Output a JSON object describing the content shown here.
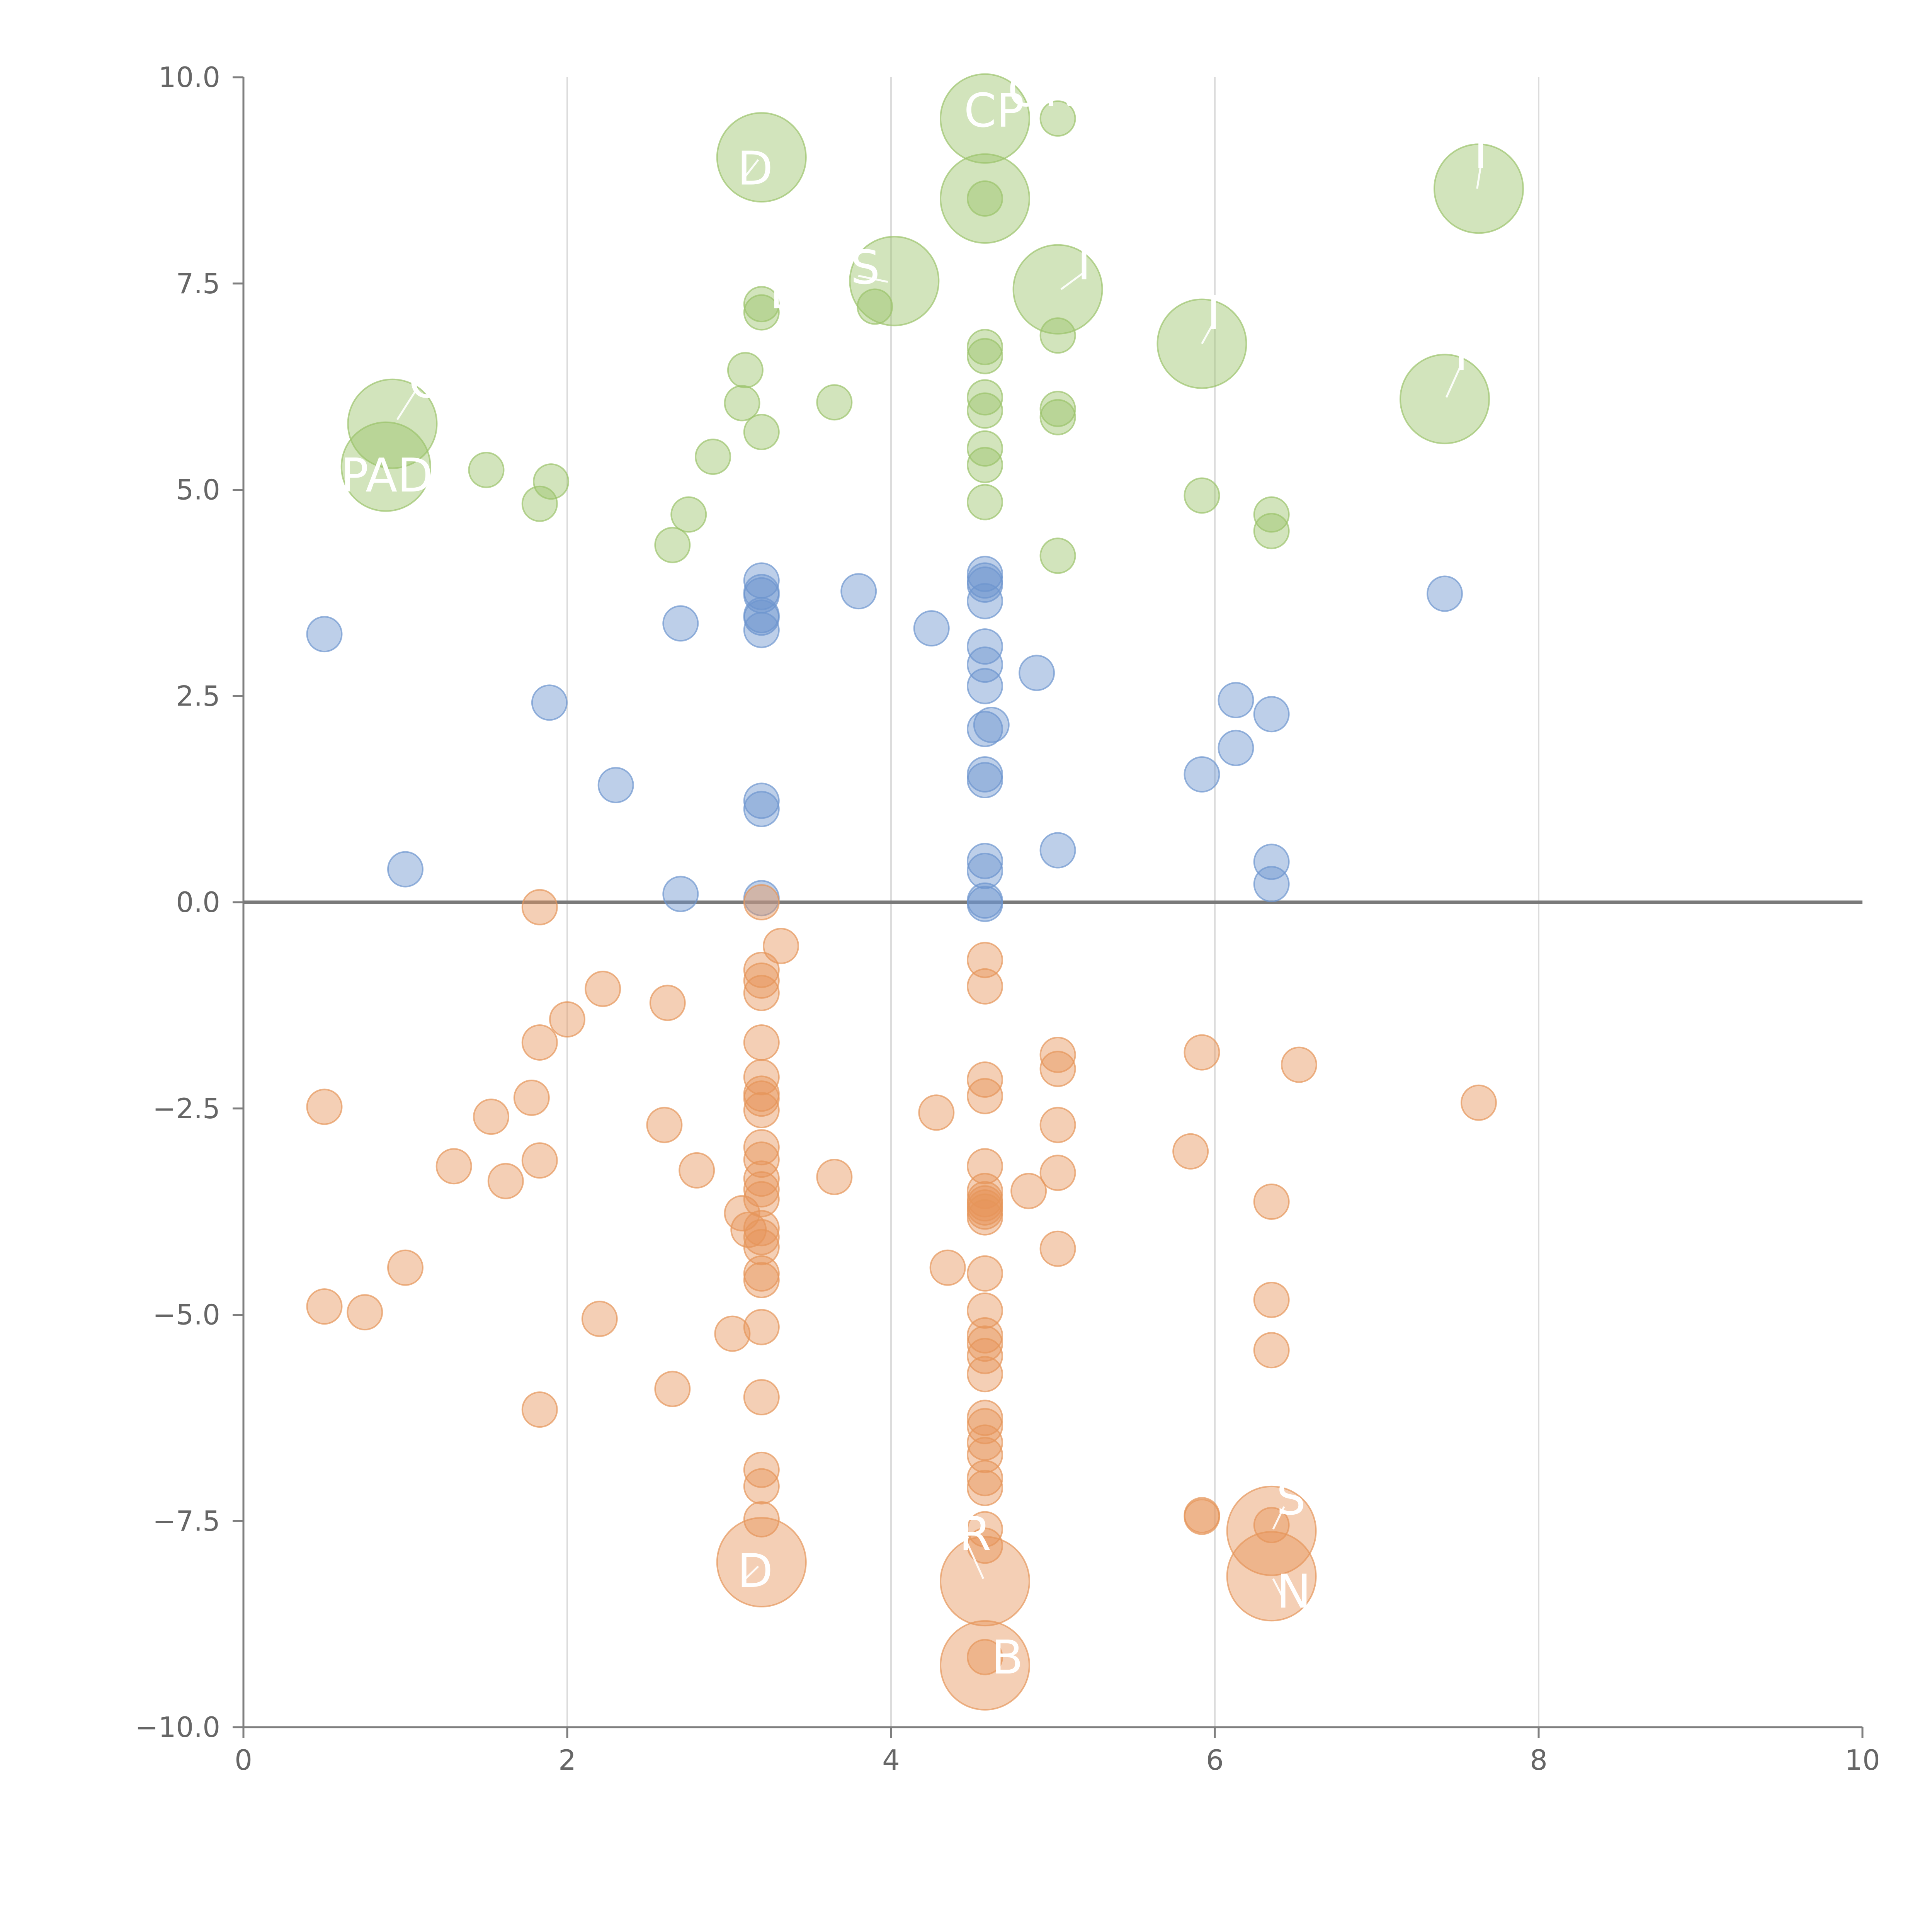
{
  "colors": {
    "green": "#9bc36b",
    "blue": "#6d95cf",
    "orange": "#e6955a",
    "axis": "#7f7f7f",
    "grid": "#dcdcdc",
    "tick_text": "#666666"
  },
  "chart_data": {
    "type": "scatter",
    "title": "",
    "xlabel": "",
    "ylabel": "",
    "xlim": [
      0,
      10
    ],
    "ylim": [
      -10,
      10
    ],
    "x_ticks": [
      0,
      2,
      4,
      6,
      8,
      10
    ],
    "x_tick_labels": [
      "0",
      "2",
      "4",
      "6",
      "8",
      "10"
    ],
    "y_ticks": [
      10,
      7.5,
      5,
      2.5,
      0,
      -2.5,
      -5,
      -7.5,
      -10
    ],
    "y_tick_labels": [
      "10.0",
      "7.5",
      "5.0",
      "2.5",
      "0.0",
      "−2.5",
      "−5.0",
      "−7.5",
      "−10.0"
    ],
    "grid": "vertical",
    "legend": "none",
    "reference_line_y": 0,
    "series": [
      {
        "color_key": "green",
        "points": [
          [
            0.88,
            5.28,
            3
          ],
          [
            0.92,
            5.8,
            3
          ],
          [
            1.5,
            5.24,
            1
          ],
          [
            1.83,
            4.83,
            1
          ],
          [
            1.9,
            5.1,
            1
          ],
          [
            2.65,
            4.33,
            1
          ],
          [
            2.75,
            4.7,
            1
          ],
          [
            2.9,
            5.4,
            1
          ],
          [
            3.08,
            6.05,
            1
          ],
          [
            3.1,
            6.45,
            1
          ],
          [
            3.2,
            5.7,
            1
          ],
          [
            3.2,
            7.15,
            1
          ],
          [
            3.2,
            7.25,
            1
          ],
          [
            3.2,
            9.03,
            3
          ],
          [
            3.65,
            6.06,
            1
          ],
          [
            3.9,
            7.22,
            1
          ],
          [
            4.02,
            7.53,
            3
          ],
          [
            4.58,
            9.5,
            3
          ],
          [
            4.58,
            8.53,
            3
          ],
          [
            4.58,
            8.53,
            1
          ],
          [
            4.58,
            6.73,
            1
          ],
          [
            4.58,
            6.62,
            1
          ],
          [
            4.58,
            6.12,
            1
          ],
          [
            4.58,
            5.96,
            1
          ],
          [
            4.58,
            5.5,
            1
          ],
          [
            4.58,
            5.3,
            1
          ],
          [
            4.58,
            4.85,
            1
          ],
          [
            5.03,
            9.5,
            1
          ],
          [
            5.03,
            7.43,
            3
          ],
          [
            5.03,
            6.87,
            1
          ],
          [
            5.03,
            5.98,
            1
          ],
          [
            5.03,
            5.88,
            1
          ],
          [
            5.03,
            4.2,
            1
          ],
          [
            5.92,
            6.77,
            3
          ],
          [
            5.92,
            4.93,
            1
          ],
          [
            6.35,
            4.7,
            1
          ],
          [
            6.35,
            4.5,
            1
          ],
          [
            7.42,
            6.1,
            3
          ],
          [
            7.63,
            8.65,
            3
          ]
        ]
      },
      {
        "color_key": "blue",
        "points": [
          [
            0.5,
            3.25,
            1
          ],
          [
            1.0,
            0.4,
            1
          ],
          [
            1.89,
            2.42,
            1
          ],
          [
            2.3,
            1.42,
            1
          ],
          [
            2.7,
            0.1,
            1
          ],
          [
            2.7,
            3.38,
            1
          ],
          [
            3.2,
            3.9,
            1
          ],
          [
            3.2,
            3.76,
            1
          ],
          [
            3.2,
            3.72,
            1
          ],
          [
            3.2,
            3.48,
            1
          ],
          [
            3.2,
            3.45,
            1
          ],
          [
            3.2,
            3.3,
            1
          ],
          [
            3.2,
            1.23,
            1
          ],
          [
            3.2,
            1.13,
            1
          ],
          [
            3.2,
            0.05,
            1
          ],
          [
            3.8,
            3.77,
            1
          ],
          [
            4.25,
            3.32,
            1
          ],
          [
            4.58,
            3.98,
            1
          ],
          [
            4.58,
            3.9,
            1
          ],
          [
            4.58,
            3.85,
            1
          ],
          [
            4.58,
            3.65,
            1
          ],
          [
            4.58,
            3.1,
            1
          ],
          [
            4.58,
            2.88,
            1
          ],
          [
            4.58,
            2.62,
            1
          ],
          [
            4.58,
            2.1,
            1
          ],
          [
            4.62,
            2.15,
            1
          ],
          [
            4.58,
            1.55,
            1
          ],
          [
            4.58,
            1.48,
            1
          ],
          [
            4.58,
            0.5,
            1
          ],
          [
            4.58,
            0.38,
            1
          ],
          [
            4.58,
            0.02,
            1
          ],
          [
            4.58,
            -0.02,
            1
          ],
          [
            4.9,
            2.78,
            1
          ],
          [
            5.03,
            0.63,
            1
          ],
          [
            5.92,
            1.55,
            1
          ],
          [
            6.13,
            2.45,
            1
          ],
          [
            6.13,
            1.87,
            1
          ],
          [
            6.35,
            2.28,
            1
          ],
          [
            6.35,
            0.49,
            1
          ],
          [
            6.35,
            0.22,
            1
          ],
          [
            7.42,
            3.74,
            1
          ]
        ]
      },
      {
        "color_key": "orange",
        "points": [
          [
            0.5,
            -2.48,
            1
          ],
          [
            0.5,
            -4.9,
            1
          ],
          [
            0.75,
            -4.97,
            1
          ],
          [
            1.0,
            -4.43,
            1
          ],
          [
            1.3,
            -3.2,
            1
          ],
          [
            1.53,
            -2.6,
            1
          ],
          [
            1.62,
            -3.38,
            1
          ],
          [
            1.78,
            -2.37,
            1
          ],
          [
            1.83,
            -0.06,
            1
          ],
          [
            1.83,
            -1.7,
            1
          ],
          [
            1.83,
            -3.13,
            1
          ],
          [
            1.83,
            -6.15,
            1
          ],
          [
            2.0,
            -1.42,
            1
          ],
          [
            2.22,
            -1.05,
            1
          ],
          [
            2.2,
            -5.05,
            1
          ],
          [
            2.62,
            -1.22,
            1
          ],
          [
            2.6,
            -2.7,
            1
          ],
          [
            2.65,
            -5.9,
            1
          ],
          [
            2.8,
            -3.25,
            1
          ],
          [
            3.02,
            -5.23,
            1
          ],
          [
            3.08,
            -3.77,
            1
          ],
          [
            3.12,
            -3.97,
            1
          ],
          [
            3.32,
            -0.53,
            1
          ],
          [
            3.2,
            0.0,
            1
          ],
          [
            3.2,
            -0.82,
            1
          ],
          [
            3.2,
            -0.95,
            1
          ],
          [
            3.2,
            -1.1,
            1
          ],
          [
            3.2,
            -1.7,
            1
          ],
          [
            3.2,
            -2.12,
            1
          ],
          [
            3.2,
            -2.32,
            1
          ],
          [
            3.2,
            -2.38,
            1
          ],
          [
            3.2,
            -2.52,
            1
          ],
          [
            3.2,
            -2.97,
            1
          ],
          [
            3.2,
            -3.12,
            1
          ],
          [
            3.2,
            -3.35,
            1
          ],
          [
            3.2,
            -3.48,
            1
          ],
          [
            3.2,
            -3.6,
            1
          ],
          [
            3.2,
            -3.95,
            1
          ],
          [
            3.2,
            -4.06,
            1
          ],
          [
            3.2,
            -4.18,
            1
          ],
          [
            3.2,
            -4.5,
            1
          ],
          [
            3.2,
            -4.58,
            1
          ],
          [
            3.2,
            -5.15,
            1
          ],
          [
            3.2,
            -6.0,
            1
          ],
          [
            3.2,
            -6.88,
            1
          ],
          [
            3.2,
            -7.08,
            1
          ],
          [
            3.2,
            -7.48,
            1
          ],
          [
            3.2,
            -8.0,
            3
          ],
          [
            3.65,
            -3.33,
            1
          ],
          [
            4.28,
            -2.55,
            1
          ],
          [
            4.35,
            -4.43,
            1
          ],
          [
            4.58,
            -0.7,
            1
          ],
          [
            4.58,
            -1.02,
            1
          ],
          [
            4.58,
            -2.15,
            1
          ],
          [
            4.58,
            -2.35,
            1
          ],
          [
            4.58,
            -3.2,
            1
          ],
          [
            4.58,
            -3.5,
            1
          ],
          [
            4.58,
            -3.6,
            1
          ],
          [
            4.58,
            -3.65,
            1
          ],
          [
            4.58,
            -3.7,
            1
          ],
          [
            4.58,
            -3.75,
            1
          ],
          [
            4.58,
            -3.82,
            1
          ],
          [
            4.58,
            -4.5,
            1
          ],
          [
            4.58,
            -4.95,
            1
          ],
          [
            4.58,
            -5.25,
            1
          ],
          [
            4.58,
            -5.35,
            1
          ],
          [
            4.58,
            -5.5,
            1
          ],
          [
            4.58,
            -5.72,
            1
          ],
          [
            4.58,
            -6.25,
            1
          ],
          [
            4.58,
            -6.35,
            1
          ],
          [
            4.58,
            -6.55,
            1
          ],
          [
            4.58,
            -6.7,
            1
          ],
          [
            4.58,
            -6.98,
            1
          ],
          [
            4.58,
            -7.1,
            1
          ],
          [
            4.58,
            -7.6,
            1
          ],
          [
            4.58,
            -7.8,
            1
          ],
          [
            4.58,
            -8.23,
            3
          ],
          [
            4.58,
            -9.25,
            3
          ],
          [
            4.58,
            -9.15,
            1
          ],
          [
            4.85,
            -3.5,
            1
          ],
          [
            5.03,
            -1.85,
            1
          ],
          [
            5.03,
            -2.02,
            1
          ],
          [
            5.03,
            -2.7,
            1
          ],
          [
            5.03,
            -3.28,
            1
          ],
          [
            5.03,
            -4.2,
            1
          ],
          [
            5.85,
            -3.02,
            1
          ],
          [
            5.92,
            -1.82,
            1
          ],
          [
            5.92,
            -7.43,
            1
          ],
          [
            5.92,
            -7.45,
            1
          ],
          [
            6.35,
            -3.63,
            1
          ],
          [
            6.35,
            -4.82,
            1
          ],
          [
            6.35,
            -5.43,
            1
          ],
          [
            6.35,
            -7.55,
            1
          ],
          [
            6.35,
            -7.62,
            3
          ],
          [
            6.35,
            -8.17,
            3
          ],
          [
            6.52,
            -1.97,
            1
          ],
          [
            7.63,
            -2.43,
            1
          ]
        ]
      }
    ],
    "annotations": [
      {
        "text": "O",
        "x": 1.02,
        "y": 6.12,
        "color": "#ffffff",
        "tick_to": [
          0.95,
          5.85
        ]
      },
      {
        "text": "PAD",
        "x": 0.6,
        "y": 4.98,
        "color": "#ffffff"
      },
      {
        "text": "D",
        "x": 3.05,
        "y": 8.7,
        "color": "#ffffff",
        "tick_to": [
          3.18,
          9.0
        ]
      },
      {
        "text": "L",
        "x": 3.25,
        "y": 7.2,
        "color": "#ffffff"
      },
      {
        "text": "S",
        "x": 3.75,
        "y": 7.5,
        "color": "#ffffff",
        "tick_to": [
          3.98,
          7.52
        ]
      },
      {
        "text": "CP",
        "x": 4.45,
        "y": 9.4,
        "color": "#ffffff"
      },
      {
        "text": "ON",
        "x": 4.72,
        "y": 9.65,
        "color": "#ffffff"
      },
      {
        "text": "I",
        "x": 5.15,
        "y": 7.55,
        "color": "#ffffff",
        "tick_to": [
          5.05,
          7.43
        ]
      },
      {
        "text": "I",
        "x": 5.95,
        "y": 6.95,
        "color": "#ffffff",
        "tick_to": [
          5.92,
          6.77
        ]
      },
      {
        "text": "I",
        "x": 7.48,
        "y": 6.45,
        "color": "#ffffff",
        "tick_to": [
          7.43,
          6.12
        ]
      },
      {
        "text": "I",
        "x": 7.6,
        "y": 8.9,
        "color": "#ffffff",
        "tick_to": [
          7.62,
          8.65
        ]
      },
      {
        "text": "D",
        "x": 3.05,
        "y": -8.3,
        "color": "#ffffff",
        "tick_to": [
          3.18,
          -8.05
        ]
      },
      {
        "text": "R",
        "x": 4.42,
        "y": -7.85,
        "color": "#ffffff",
        "tick_to": [
          4.57,
          -8.2
        ]
      },
      {
        "text": "B",
        "x": 4.62,
        "y": -9.35,
        "color": "#ffffff"
      },
      {
        "text": "S",
        "x": 6.38,
        "y": -7.42,
        "color": "#ffffff",
        "tick_to": [
          6.36,
          -7.6
        ]
      },
      {
        "text": "N",
        "x": 6.38,
        "y": -8.55,
        "color": "#ffffff",
        "tick_to": [
          6.36,
          -8.2
        ]
      }
    ]
  }
}
